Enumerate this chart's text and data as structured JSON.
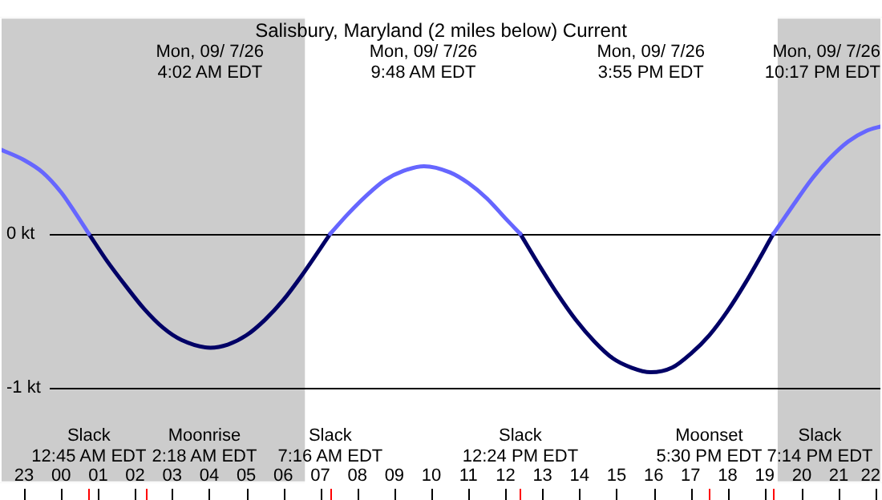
{
  "chart_data": {
    "type": "line",
    "title": "Salisbury, Maryland (2 miles below) Current",
    "xlim": [
      "--09-06T22:21",
      "--09-07T22:10"
    ],
    "xticks": [
      {
        "value": "--09-06T23:00",
        "label": "23"
      },
      {
        "value": "--09-07T00:00",
        "label": "00"
      },
      {
        "value": "--09-07T01:00",
        "label": "01"
      },
      {
        "value": "--09-07T02:00",
        "label": "02"
      },
      {
        "value": "--09-07T03:00",
        "label": "03"
      },
      {
        "value": "--09-07T04:00",
        "label": "04"
      },
      {
        "value": "--09-07T05:00",
        "label": "05"
      },
      {
        "value": "--09-07T06:00",
        "label": "06"
      },
      {
        "value": "--09-07T07:00",
        "label": "07"
      },
      {
        "value": "--09-07T08:00",
        "label": "08"
      },
      {
        "value": "--09-07T09:00",
        "label": "09"
      },
      {
        "value": "--09-07T10:00",
        "label": "10"
      },
      {
        "value": "--09-07T11:00",
        "label": "11"
      },
      {
        "value": "--09-07T12:00",
        "label": "12"
      },
      {
        "value": "--09-07T13:00",
        "label": "13"
      },
      {
        "value": "--09-07T14:00",
        "label": "14"
      },
      {
        "value": "--09-07T15:00",
        "label": "15"
      },
      {
        "value": "--09-07T16:00",
        "label": "16"
      },
      {
        "value": "--09-07T17:00",
        "label": "17"
      },
      {
        "value": "--09-07T18:00",
        "label": "18"
      },
      {
        "value": "--09-07T19:00",
        "label": "19"
      },
      {
        "value": "--09-07T20:00",
        "label": "20"
      },
      {
        "value": "--09-07T21:00",
        "label": "21"
      },
      {
        "value": "--09-07T22:00",
        "label": "22"
      }
    ],
    "ylim": [
      -1.62,
      1.41
    ],
    "yticks": [
      {
        "value": -1,
        "label": "-1 kt"
      },
      {
        "value": 0,
        "label": "0 kt"
      }
    ],
    "grid": "y",
    "legend": false,
    "marker": "none",
    "line_style": "solid",
    "series": [
      {
        "color": "#6666ff",
        "x": [
          "--09-06T22:21",
          "--09-06T23:00",
          "--09-06T23:30",
          "--09-07T00:00",
          "--09-07T00:24",
          "--09-07T00:45",
          "--09-07T03:00",
          "--09-07T07:16",
          "--09-07T07:45",
          "--09-07T08:15",
          "--09-07T08:45",
          "--09-07T09:15",
          "--09-07T09:48",
          "--09-07T10:30",
          "--09-07T11:00",
          "--09-07T11:30",
          "--09-07T12:00",
          "--09-07T12:24",
          "--09-07T16:00",
          "--09-07T19:14",
          "--09-07T19:45",
          "--09-07T20:15",
          "--09-07T20:45",
          "--09-07T21:15",
          "--09-07T21:45",
          "--09-07T22:10"
        ],
        "values": [
          0.55,
          0.48,
          0.4,
          0.27,
          0.13,
          0,
          null,
          0,
          0.13,
          0.25,
          0.35,
          0.41,
          0.44,
          0.4,
          0.33,
          0.23,
          0.1,
          0,
          null,
          0,
          0.18,
          0.35,
          0.49,
          0.6,
          0.67,
          0.7
        ]
      },
      {
        "color": "#000066",
        "x": [
          "--09-07T00:45",
          "--09-07T01:15",
          "--09-07T01:45",
          "--09-07T02:15",
          "--09-07T02:45",
          "--09-07T03:15",
          "--09-07T04:02",
          "--09-07T04:30",
          "--09-07T05:00",
          "--09-07T05:30",
          "--09-07T06:00",
          "--09-07T06:30",
          "--09-07T07:16",
          "--09-07T09:48",
          "--09-07T12:24",
          "--09-07T12:54",
          "--09-07T13:24",
          "--09-07T13:54",
          "--09-07T14:24",
          "--09-07T14:54",
          "--09-07T15:24",
          "--09-07T15:55",
          "--09-07T16:30",
          "--09-07T17:00",
          "--09-07T17:30",
          "--09-07T18:00",
          "--09-07T18:30",
          "--09-07T19:14"
        ],
        "values": [
          0,
          -0.18,
          -0.34,
          -0.49,
          -0.61,
          -0.69,
          -0.74,
          -0.72,
          -0.66,
          -0.56,
          -0.43,
          -0.27,
          0,
          null,
          0,
          -0.2,
          -0.39,
          -0.56,
          -0.7,
          -0.81,
          -0.87,
          -0.9,
          -0.87,
          -0.78,
          -0.66,
          -0.5,
          -0.31,
          0
        ]
      }
    ],
    "bands": [
      {
        "axis": "x",
        "from": "--09-06T22:21",
        "to": "--09-07T06:35",
        "color": "#cccccc"
      },
      {
        "axis": "x",
        "from": "--09-07T19:21",
        "to": "--09-07T22:10",
        "color": "#cccccc"
      }
    ],
    "ref_lines": [
      {
        "axis": "x",
        "value": "--09-07T00:45",
        "label": "Slack\n12:45 AM EDT",
        "color": "#ff0000"
      },
      {
        "axis": "x",
        "value": "--09-07T02:18",
        "label": "Moonrise\n2:18 AM EDT",
        "color": "#ff0000"
      },
      {
        "axis": "x",
        "value": "--09-07T07:16",
        "label": "Slack\n7:16 AM EDT",
        "color": "#ff0000"
      },
      {
        "axis": "x",
        "value": "--09-07T12:24",
        "label": "Slack\n12:24 PM EDT",
        "color": "#ff0000"
      },
      {
        "axis": "x",
        "value": "--09-07T17:30",
        "label": "Moonset\n5:30 PM EDT",
        "color": "#ff0000"
      },
      {
        "axis": "x",
        "value": "--09-07T19:14",
        "label": "Slack\n7:14 PM EDT",
        "color": "#ff0000"
      }
    ],
    "annotations": [
      "Mon, 09/ 7/26\n4:02 AM EDT",
      "Mon, 09/ 7/26\n9:48 AM EDT",
      "Mon, 09/ 7/26\n3:55 PM EDT",
      "Mon, 09/ 7/26\n10:17 PM EDT"
    ]
  }
}
